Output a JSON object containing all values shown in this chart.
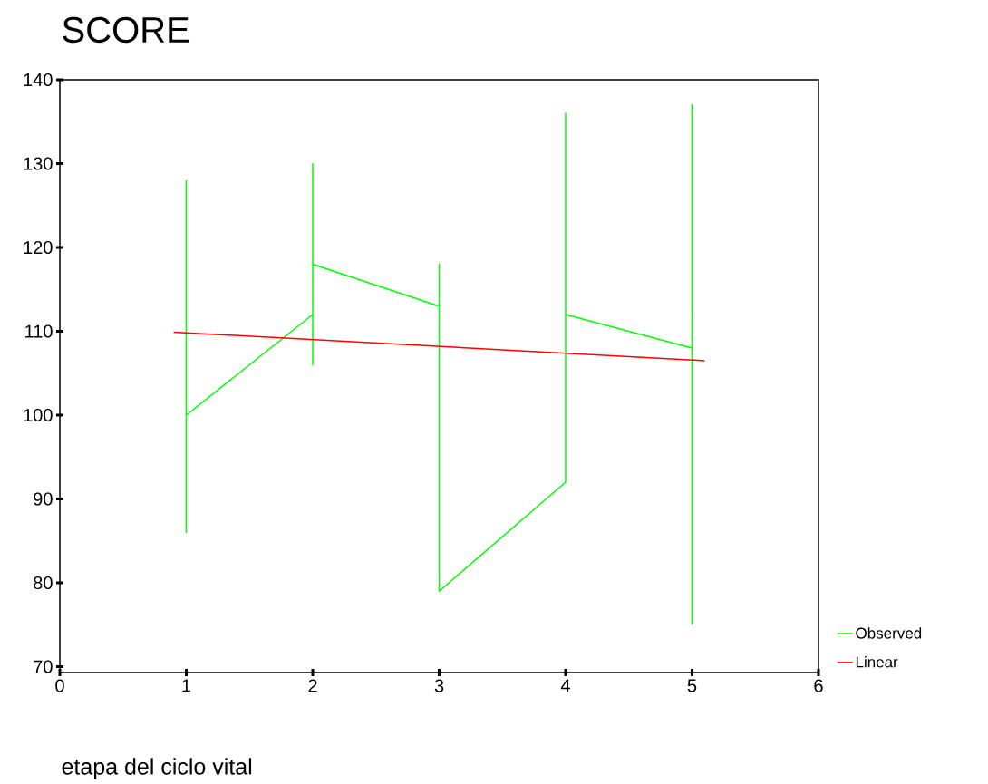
{
  "chart_data": {
    "type": "line",
    "title": "SCORE",
    "xlabel": "etapa del ciclo vital",
    "xlim": [
      0,
      6
    ],
    "xticks": [
      0,
      1,
      2,
      3,
      4,
      5,
      6
    ],
    "ylim": [
      69.3,
      140
    ],
    "yticks": [
      70,
      80,
      90,
      100,
      110,
      120,
      130,
      140
    ],
    "grid": false,
    "legend": "right",
    "marker": "none",
    "line_style": "solid",
    "series": [
      {
        "name": "Observed",
        "color": "#00ff00",
        "x": [
          1,
          1,
          1,
          2,
          2,
          2,
          2,
          3,
          3,
          3,
          4,
          4,
          4,
          4,
          5,
          5,
          5
        ],
        "values": [
          128,
          86,
          100,
          112,
          130,
          106,
          118,
          113,
          118,
          79,
          92,
          136,
          97,
          112,
          108,
          137,
          75
        ]
      },
      {
        "name": "Linear",
        "color": "#ff0000",
        "x": [
          0.9,
          5.1
        ],
        "values": [
          109.9,
          106.5
        ]
      }
    ]
  }
}
